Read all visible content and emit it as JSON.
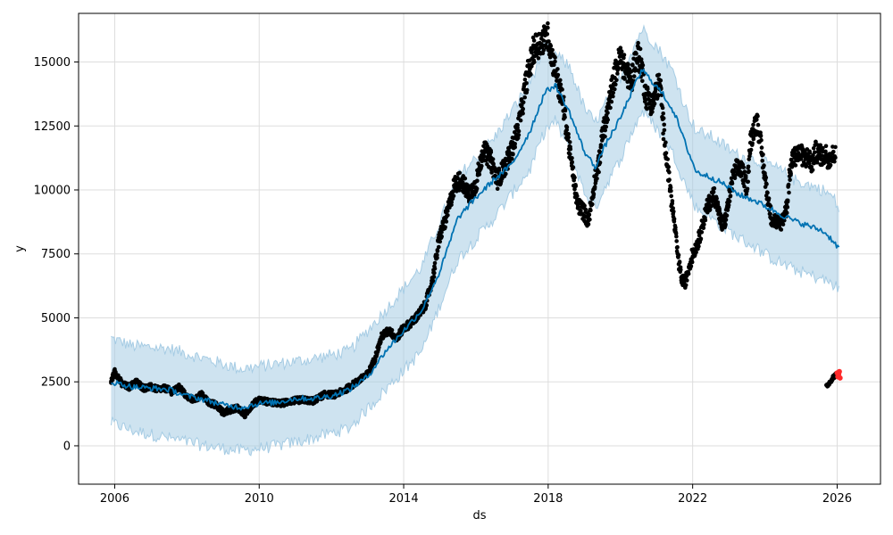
{
  "chart_data": {
    "type": "line",
    "xlabel": "ds",
    "ylabel": "y",
    "xlim": [
      2005.0,
      2027.2
    ],
    "ylim": [
      -1500,
      16900
    ],
    "grid": true,
    "x_ticks": [
      "2006",
      "2010",
      "2014",
      "2018",
      "2022",
      "2026"
    ],
    "y_ticks": [
      "0",
      "2500",
      "5000",
      "7500",
      "10000",
      "12500",
      "15000"
    ],
    "colors": {
      "forecast_line": "#0072b2",
      "interval_fill": "#a6cce4",
      "observed_points": "#000000",
      "test_points": "#ff2a2a",
      "grid": "#dddddd"
    },
    "series": [
      {
        "kind": "forecast",
        "x": [
          2005.9,
          2006.2,
          2006.5,
          2007.0,
          2007.5,
          2008.0,
          2008.5,
          2009.0,
          2009.5,
          2010.0,
          2010.5,
          2011.0,
          2011.5,
          2012.0,
          2012.5,
          2013.0,
          2013.5,
          2014.0,
          2014.5,
          2015.0,
          2015.5,
          2016.0,
          2016.5,
          2017.0,
          2017.5,
          2017.9,
          2018.2,
          2018.6,
          2019.0,
          2019.3,
          2019.6,
          2020.0,
          2020.3,
          2020.6,
          2020.9,
          2021.2,
          2021.5,
          2021.8,
          2022.1,
          2022.5,
          2022.9,
          2023.3,
          2023.7,
          2024.1,
          2024.5,
          2024.8,
          2025.2,
          2025.6,
          2025.9,
          2026.05
        ],
        "y": [
          2500,
          2400,
          2300,
          2250,
          2200,
          1950,
          1800,
          1600,
          1500,
          1650,
          1700,
          1850,
          1850,
          1950,
          2200,
          2700,
          3700,
          4500,
          5300,
          6800,
          8900,
          9700,
          10400,
          11000,
          12300,
          13800,
          14100,
          13000,
          11500,
          10900,
          11800,
          12800,
          13800,
          14700,
          14200,
          13700,
          13000,
          11800,
          10700,
          10500,
          10200,
          9800,
          9600,
          9300,
          9000,
          8800,
          8600,
          8400,
          8000,
          7700
        ]
      },
      {
        "kind": "interval_upper",
        "x": [
          2005.9,
          2006.5,
          2007.5,
          2008.5,
          2009.5,
          2010.5,
          2011.5,
          2012.5,
          2013.5,
          2014.5,
          2015.5,
          2016.5,
          2017.5,
          2017.9,
          2018.2,
          2018.6,
          2019.0,
          2019.3,
          2019.6,
          2020.0,
          2020.3,
          2020.6,
          2020.9,
          2021.2,
          2021.5,
          2021.8,
          2022.1,
          2022.5,
          2022.9,
          2023.3,
          2023.7,
          2024.1,
          2024.5,
          2024.8,
          2025.2,
          2025.6,
          2025.9,
          2026.05
        ],
        "y": [
          4200,
          3900,
          3800,
          3400,
          3000,
          3200,
          3400,
          3700,
          5300,
          7000,
          10500,
          12000,
          14200,
          15600,
          15300,
          14800,
          13200,
          12600,
          13400,
          14400,
          15400,
          16300,
          15800,
          15200,
          14500,
          13200,
          12300,
          12100,
          11700,
          11300,
          11200,
          11000,
          10700,
          10400,
          10200,
          10000,
          9700,
          9200
        ]
      },
      {
        "kind": "interval_lower",
        "x": [
          2005.9,
          2006.5,
          2007.5,
          2008.5,
          2009.5,
          2010.5,
          2011.5,
          2012.5,
          2013.5,
          2014.5,
          2015.5,
          2016.5,
          2017.5,
          2017.9,
          2018.2,
          2018.6,
          2019.0,
          2019.3,
          2019.6,
          2020.0,
          2020.3,
          2020.6,
          2020.9,
          2021.2,
          2021.5,
          2021.8,
          2022.1,
          2022.5,
          2022.9,
          2023.3,
          2023.7,
          2024.1,
          2024.5,
          2024.8,
          2025.2,
          2025.6,
          2025.9,
          2026.05
        ],
        "y": [
          900,
          600,
          300,
          0,
          -200,
          0,
          300,
          700,
          2200,
          3700,
          7300,
          8900,
          10800,
          12300,
          12700,
          11500,
          9900,
          9300,
          10200,
          11200,
          12200,
          13100,
          12600,
          12000,
          11300,
          10200,
          9300,
          8900,
          8500,
          8100,
          7800,
          7400,
          7100,
          6900,
          6700,
          6500,
          6300,
          6100
        ]
      },
      {
        "kind": "observed",
        "x": [
          2005.9,
          2006.0,
          2006.1,
          2006.2,
          2006.4,
          2006.6,
          2006.8,
          2007.0,
          2007.2,
          2007.4,
          2007.6,
          2007.8,
          2008.0,
          2008.2,
          2008.4,
          2008.6,
          2008.8,
          2009.0,
          2009.2,
          2009.4,
          2009.6,
          2009.8,
          2010.0,
          2010.3,
          2010.6,
          2010.9,
          2011.2,
          2011.5,
          2011.8,
          2012.1,
          2012.4,
          2012.7,
          2013.0,
          2013.2,
          2013.4,
          2013.6,
          2013.8,
          2014.0,
          2014.2,
          2014.4,
          2014.6,
          2014.8,
          2015.0,
          2015.2,
          2015.4,
          2015.6,
          2015.8,
          2016.0,
          2016.2,
          2016.4,
          2016.6,
          2016.8,
          2017.0,
          2017.2,
          2017.4,
          2017.6,
          2017.8,
          2018.0,
          2018.1,
          2018.2,
          2018.3,
          2018.4,
          2018.5,
          2018.6,
          2018.7,
          2018.8,
          2018.9,
          2019.0,
          2019.1,
          2019.2,
          2019.3,
          2019.4,
          2019.5,
          2019.6,
          2019.7,
          2019.8,
          2019.9,
          2020.0,
          2020.1,
          2020.2,
          2020.3,
          2020.4,
          2020.5,
          2020.6,
          2020.7,
          2020.8,
          2020.9,
          2021.0,
          2021.1,
          2021.2,
          2021.3,
          2021.4,
          2021.5,
          2021.6,
          2021.7,
          2021.8,
          2021.9,
          2022.0,
          2022.1,
          2022.2,
          2022.3,
          2022.4,
          2022.5,
          2022.6,
          2022.7,
          2022.8,
          2022.9,
          2023.0,
          2023.1,
          2023.2,
          2023.3,
          2023.4,
          2023.5,
          2023.6,
          2023.7,
          2023.8,
          2023.9,
          2024.0,
          2024.1,
          2024.2,
          2024.3,
          2024.4,
          2024.5,
          2024.6,
          2024.7,
          2024.8,
          2024.9,
          2025.0,
          2025.1,
          2025.2,
          2025.3,
          2025.4,
          2025.5,
          2025.6,
          2025.7,
          2025.75,
          2025.85,
          2025.95
        ],
        "y": [
          2500,
          2900,
          2700,
          2400,
          2300,
          2500,
          2250,
          2300,
          2200,
          2250,
          2100,
          2300,
          1900,
          1800,
          2000,
          1700,
          1600,
          1300,
          1400,
          1500,
          1200,
          1600,
          1800,
          1700,
          1650,
          1750,
          1800,
          1750,
          2000,
          2000,
          2200,
          2500,
          2800,
          3400,
          4300,
          4500,
          4200,
          4600,
          4800,
          5100,
          5500,
          6500,
          8200,
          9000,
          10200,
          10400,
          9800,
          10200,
          11600,
          11200,
          10400,
          10900,
          11600,
          12600,
          14300,
          15500,
          15800,
          16000,
          15200,
          14700,
          14000,
          13500,
          12500,
          11500,
          10500,
          9500,
          9300,
          9100,
          8800,
          9500,
          10500,
          11000,
          12200,
          12600,
          13500,
          14200,
          14800,
          15200,
          14800,
          14500,
          14200,
          15000,
          15300,
          14700,
          13700,
          13500,
          13300,
          14000,
          14100,
          12300,
          11000,
          9800,
          8600,
          7300,
          6500,
          6400,
          7000,
          7500,
          7800,
          8200,
          8800,
          9300,
          9600,
          9800,
          9300,
          8600,
          8800,
          9600,
          10400,
          10800,
          10900,
          10600,
          10100,
          11800,
          12500,
          12600,
          11600,
          10500,
          9500,
          8800,
          8800,
          8600,
          8900,
          9300,
          10800,
          11300,
          11400,
          11400,
          11200,
          11300,
          11000,
          11500,
          11400,
          11300,
          11400,
          11200,
          11300,
          11500
        ]
      },
      {
        "kind": "observed_tail",
        "x": [
          2025.7,
          2025.75,
          2025.8,
          2025.85,
          2025.9,
          2025.95,
          2026.0
        ],
        "y": [
          2300,
          2400,
          2500,
          2600,
          2700,
          2750,
          2800
        ]
      },
      {
        "kind": "test",
        "x": [
          2026.0,
          2026.02,
          2026.04,
          2026.06,
          2026.08
        ],
        "y": [
          2850,
          2700,
          2800,
          2900,
          2650
        ]
      }
    ]
  }
}
